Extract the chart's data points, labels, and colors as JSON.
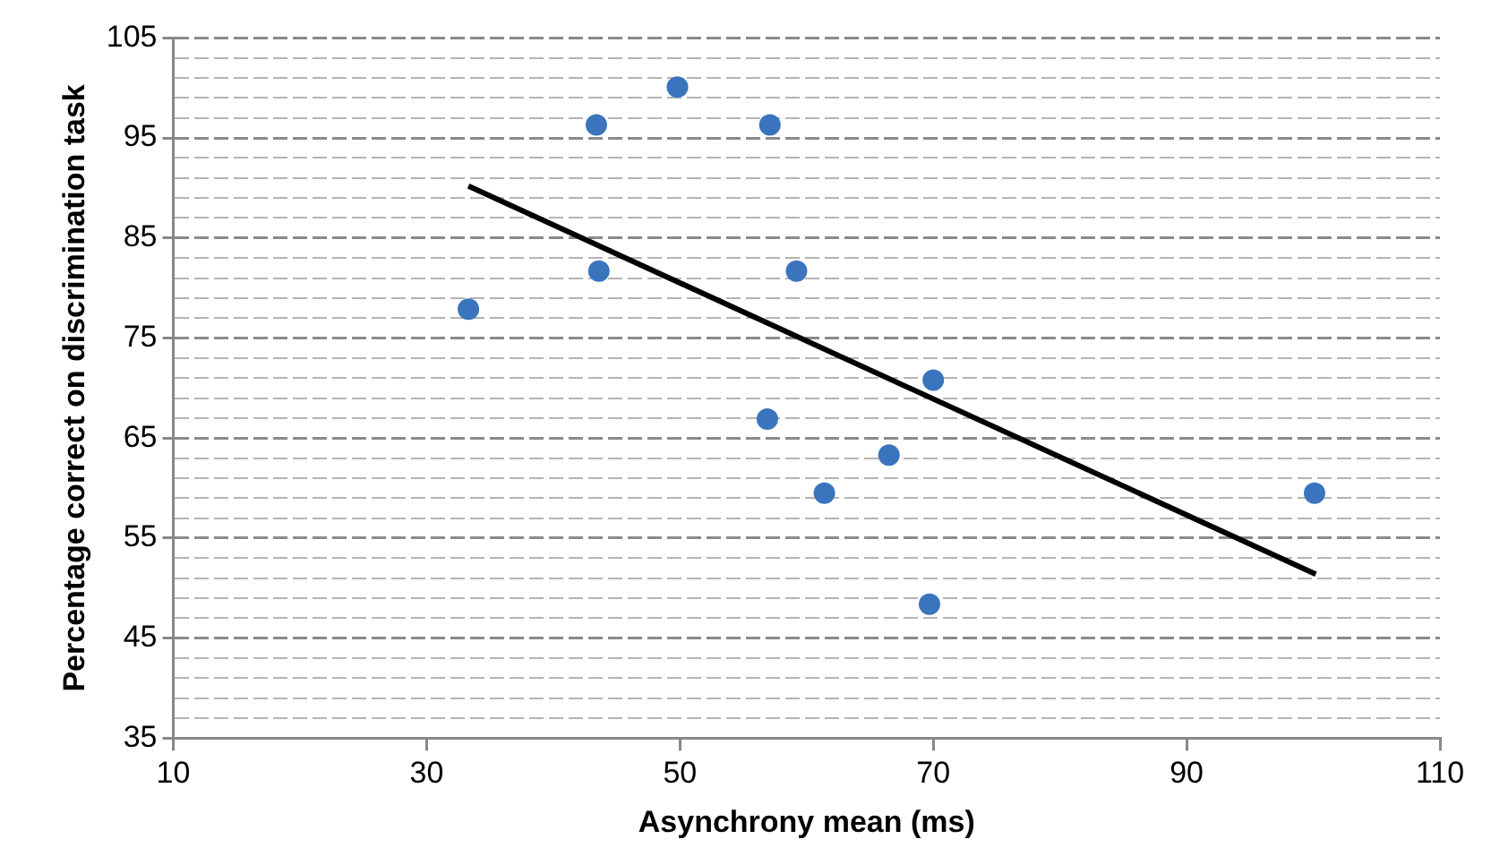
{
  "chart_data": {
    "type": "scatter",
    "xlabel": "Asynchrony mean (ms)",
    "ylabel": "Percentage correct on discrimination task",
    "xlim": [
      10,
      110
    ],
    "xticks": [
      10,
      30,
      50,
      70,
      90,
      110
    ],
    "ylim": [
      35,
      105
    ],
    "yticks": [
      35,
      {
        "value": 37,
        "label": null
      },
      {
        "value": 39,
        "label": null
      },
      {
        "value": 41,
        "label": null
      },
      {
        "value": 43,
        "label": null
      },
      45,
      {
        "value": 47,
        "label": null
      },
      {
        "value": 49,
        "label": null
      },
      {
        "value": 51,
        "label": null
      },
      {
        "value": 53,
        "label": null
      },
      55,
      {
        "value": 57,
        "label": null
      },
      {
        "value": 59,
        "label": null
      },
      {
        "value": 61,
        "label": null
      },
      {
        "value": 63,
        "label": null
      },
      65,
      {
        "value": 67,
        "label": null
      },
      {
        "value": 69,
        "label": null
      },
      {
        "value": 71,
        "label": null
      },
      {
        "value": 73,
        "label": null
      },
      75,
      {
        "value": 77,
        "label": null
      },
      {
        "value": 79,
        "label": null
      },
      {
        "value": 81,
        "label": null
      },
      {
        "value": 83,
        "label": null
      },
      85,
      {
        "value": 87,
        "label": null
      },
      {
        "value": 89,
        "label": null
      },
      {
        "value": 91,
        "label": null
      },
      {
        "value": 93,
        "label": null
      },
      95,
      {
        "value": 97,
        "label": null
      },
      {
        "value": 99,
        "label": null
      },
      {
        "value": 101,
        "label": null
      },
      {
        "value": 103,
        "label": null
      },
      105
    ],
    "grid": "y",
    "legend": false,
    "line_style": "dashed",
    "series": [
      {
        "type": "scatter",
        "marker": "circle",
        "color": "#3a74bd",
        "x": [
          33.3,
          43.4,
          49.8,
          57.1,
          43.6,
          59.2,
          56.9,
          61.4,
          66.5,
          70.0,
          69.7,
          100.1
        ],
        "values": [
          77.9,
          96.3,
          100.1,
          96.3,
          81.7,
          81.7,
          66.9,
          59.5,
          63.3,
          70.8,
          48.4,
          59.5
        ]
      },
      {
        "type": "line",
        "marker": "none",
        "line_style": "solid",
        "color": "#000000",
        "x": [
          33.3,
          100.2
        ],
        "values": [
          90.2,
          51.4
        ]
      }
    ]
  }
}
